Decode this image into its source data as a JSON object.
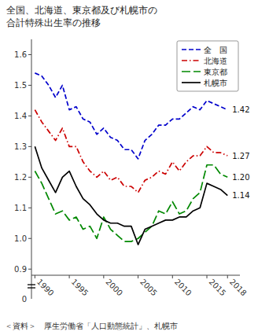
{
  "chart_data": {
    "type": "line",
    "title": "全国、北海道、東京都及び札幌市の",
    "subtitle": "合計特殊出生率の推移",
    "x": [
      1990,
      1991,
      1992,
      1993,
      1994,
      1995,
      1996,
      1997,
      1998,
      1999,
      2000,
      2001,
      2002,
      2003,
      2004,
      2005,
      2006,
      2007,
      2008,
      2009,
      2010,
      2011,
      2012,
      2013,
      2014,
      2015,
      2016,
      2017,
      2018
    ],
    "series": [
      {
        "name": "全　国",
        "color": "#0000cc",
        "line_style": "dashed",
        "values": [
          1.54,
          1.53,
          1.5,
          1.46,
          1.5,
          1.42,
          1.43,
          1.39,
          1.38,
          1.34,
          1.36,
          1.33,
          1.32,
          1.29,
          1.29,
          1.26,
          1.32,
          1.34,
          1.37,
          1.37,
          1.39,
          1.39,
          1.41,
          1.43,
          1.42,
          1.45,
          1.44,
          1.43,
          1.42
        ]
      },
      {
        "name": "北海道",
        "color": "#cc0000",
        "line_style": "dash-dot",
        "values": [
          1.42,
          1.38,
          1.35,
          1.32,
          1.36,
          1.3,
          1.3,
          1.25,
          1.22,
          1.2,
          1.22,
          1.19,
          1.2,
          1.17,
          1.17,
          1.15,
          1.19,
          1.2,
          1.22,
          1.21,
          1.25,
          1.22,
          1.25,
          1.27,
          1.27,
          1.3,
          1.28,
          1.28,
          1.27
        ]
      },
      {
        "name": "東京都",
        "color": "#008800",
        "line_style": "long-dashed",
        "values": [
          1.22,
          1.18,
          1.13,
          1.08,
          1.09,
          1.06,
          1.07,
          1.03,
          1.04,
          1.0,
          1.07,
          1.03,
          1.01,
          0.99,
          0.99,
          1.0,
          1.02,
          1.04,
          1.09,
          1.08,
          1.12,
          1.08,
          1.09,
          1.13,
          1.15,
          1.24,
          1.24,
          1.21,
          1.2
        ]
      },
      {
        "name": "札幌市",
        "color": "#000000",
        "line_style": "solid",
        "values": [
          1.3,
          1.23,
          1.19,
          1.15,
          1.2,
          1.22,
          1.17,
          1.13,
          1.11,
          1.08,
          1.06,
          1.05,
          1.05,
          1.04,
          1.04,
          0.98,
          1.03,
          1.04,
          1.05,
          1.06,
          1.06,
          1.07,
          1.07,
          1.09,
          1.1,
          1.18,
          1.17,
          1.16,
          1.14
        ]
      }
    ],
    "xlim": [
      1989.5,
      2019.8
    ],
    "xticks": [
      1990,
      1995,
      2000,
      2005,
      2010,
      2015,
      2018
    ],
    "ylim": [
      0.88,
      1.65
    ],
    "yticks": [
      0.9,
      {
        "value": 1.0,
        "label": "1.0"
      },
      1.1,
      1.2,
      1.3,
      1.4,
      1.5,
      1.6
    ],
    "grid": false,
    "legend": "upper-right",
    "annotations": [
      {
        "text": "1.42",
        "y": 1.42
      },
      {
        "text": "1.27",
        "y": 1.27
      },
      {
        "text": "1.20",
        "y": 1.2
      },
      {
        "text": "1.14",
        "y": 1.14
      },
      {
        "text": "0",
        "y": 0
      },
      {
        "text": "＜資料＞　厚生労働省「人口動態統計」、札幌市"
      }
    ]
  }
}
